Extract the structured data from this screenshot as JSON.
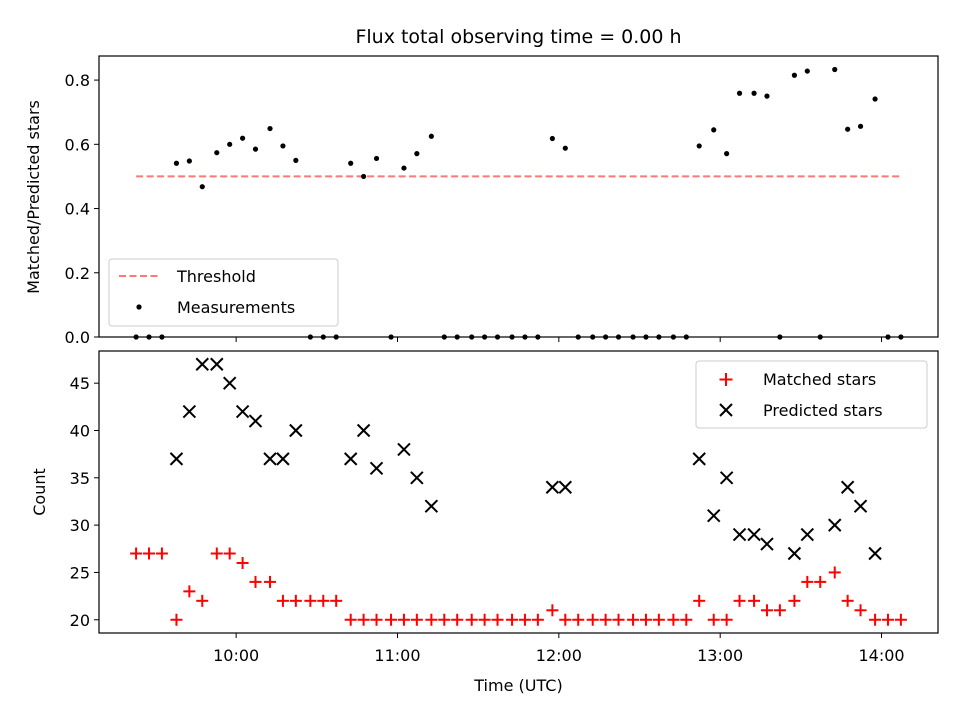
{
  "chart_data": [
    {
      "type": "scatter",
      "title": "Flux total observing time = 0.00 h",
      "xlabel": "",
      "ylabel": "Matched/Predicted stars",
      "ylim": [
        0,
        0.875
      ],
      "yticks": [
        "0.0",
        "0.2",
        "0.4",
        "0.6",
        "0.8"
      ],
      "ytick_values": [
        0,
        0.2,
        0.4,
        0.6,
        0.8
      ],
      "legend_position": "lower-left",
      "threshold": {
        "label": "Threshold",
        "value": 0.5,
        "x_start": 9.38,
        "x_end": 14.12,
        "color": "#ff7878"
      },
      "series": [
        {
          "name": "Measurements",
          "color": "#000000",
          "x": [
            9.38,
            9.46,
            9.54,
            9.63,
            9.71,
            9.79,
            9.88,
            9.96,
            10.04,
            10.12,
            10.21,
            10.29,
            10.37,
            10.46,
            10.54,
            10.62,
            10.71,
            10.79,
            10.87,
            10.96,
            11.04,
            11.12,
            11.21,
            11.29,
            11.37,
            11.46,
            11.54,
            11.62,
            11.71,
            11.79,
            11.87,
            11.96,
            12.04,
            12.12,
            12.21,
            12.29,
            12.37,
            12.46,
            12.54,
            12.62,
            12.71,
            12.79,
            12.87,
            12.96,
            13.04,
            13.12,
            13.21,
            13.29,
            13.37,
            13.46,
            13.54,
            13.62,
            13.71,
            13.79,
            13.87,
            13.96,
            14.04,
            14.12
          ],
          "y": [
            0,
            0,
            0,
            0.541,
            0.548,
            0.468,
            0.574,
            0.6,
            0.619,
            0.585,
            0.649,
            0.595,
            0.55,
            0,
            0,
            0,
            0.541,
            0.5,
            0.556,
            0,
            0.526,
            0.571,
            0.625,
            0,
            0,
            0,
            0,
            0,
            0,
            0,
            0,
            0.618,
            0.588,
            0,
            0,
            0,
            0,
            0,
            0,
            0,
            0,
            0,
            0.595,
            0.645,
            0.571,
            0.759,
            0.759,
            0.75,
            0,
            0.815,
            0.828,
            0,
            0.833,
            0.647,
            0.656,
            0.741,
            0,
            0
          ]
        }
      ]
    },
    {
      "type": "scatter",
      "title": "",
      "xlabel": "Time (UTC)",
      "ylabel": "Count",
      "ylim": [
        18.6,
        48.4
      ],
      "yticks": [
        "20",
        "25",
        "30",
        "35",
        "40",
        "45"
      ],
      "ytick_values": [
        20,
        25,
        30,
        35,
        40,
        45
      ],
      "xlim": [
        9.15,
        14.35
      ],
      "xticks": [
        "10:00",
        "11:00",
        "12:00",
        "13:00",
        "14:00"
      ],
      "xtick_values": [
        10,
        11,
        12,
        13,
        14
      ],
      "legend_position": "upper-right",
      "series": [
        {
          "name": "Matched stars",
          "marker": "plus",
          "color": "#ff0000",
          "x": [
            9.38,
            9.46,
            9.54,
            9.63,
            9.71,
            9.79,
            9.88,
            9.96,
            10.04,
            10.12,
            10.21,
            10.29,
            10.37,
            10.46,
            10.54,
            10.62,
            10.71,
            10.79,
            10.87,
            10.96,
            11.04,
            11.12,
            11.21,
            11.29,
            11.37,
            11.46,
            11.54,
            11.62,
            11.71,
            11.79,
            11.87,
            11.96,
            12.04,
            12.12,
            12.21,
            12.29,
            12.37,
            12.46,
            12.54,
            12.62,
            12.71,
            12.79,
            12.87,
            12.96,
            13.04,
            13.12,
            13.21,
            13.29,
            13.37,
            13.46,
            13.54,
            13.62,
            13.71,
            13.79,
            13.87,
            13.96,
            14.04,
            14.12
          ],
          "y": [
            27,
            27,
            27,
            20,
            23,
            22,
            27,
            27,
            26,
            24,
            24,
            22,
            22,
            22,
            22,
            22,
            20,
            20,
            20,
            20,
            20,
            20,
            20,
            20,
            20,
            20,
            20,
            20,
            20,
            20,
            20,
            21,
            20,
            20,
            20,
            20,
            20,
            20,
            20,
            20,
            20,
            20,
            22,
            20,
            20,
            22,
            22,
            21,
            21,
            22,
            24,
            24,
            25,
            22,
            21,
            20,
            20,
            20
          ]
        },
        {
          "name": "Predicted stars",
          "marker": "x",
          "color": "#000000",
          "x": [
            9.63,
            9.71,
            9.79,
            9.88,
            9.96,
            10.04,
            10.12,
            10.21,
            10.29,
            10.37,
            10.71,
            10.79,
            10.87,
            11.04,
            11.12,
            11.21,
            11.96,
            12.04,
            12.87,
            12.96,
            13.04,
            13.12,
            13.21,
            13.29,
            13.46,
            13.54,
            13.71,
            13.79,
            13.87,
            13.96
          ],
          "y": [
            37,
            42,
            47,
            47,
            45,
            42,
            41,
            37,
            37,
            40,
            37,
            40,
            36,
            38,
            35,
            32,
            34,
            34,
            37,
            31,
            35,
            29,
            29,
            28,
            27,
            29,
            30,
            34,
            32,
            27
          ]
        }
      ]
    }
  ]
}
